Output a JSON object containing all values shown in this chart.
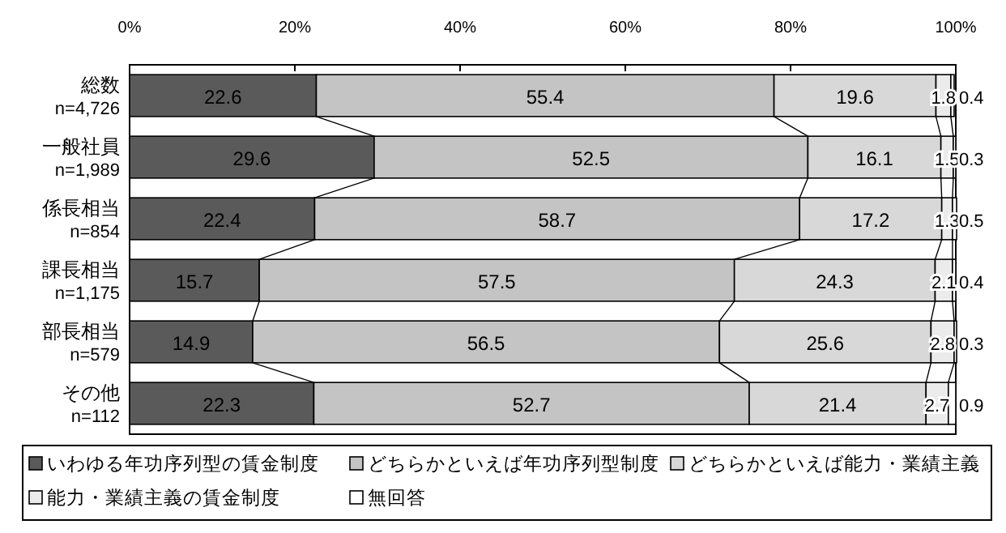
{
  "chart_data": {
    "type": "bar",
    "orientation": "horizontal",
    "stacked": true,
    "data_labels": true,
    "legend": "bottom",
    "grid": false,
    "categories": [
      "総数\nn=4,726",
      "一般社員\nn=1,989",
      "係長相当\nn=854",
      "課長相当\nn=1,175",
      "部長相当\nn=579",
      "その他\nn=112"
    ],
    "xlim": [
      0,
      100
    ],
    "xticks": [
      {
        "value": 0,
        "label": "0%"
      },
      {
        "value": 20,
        "label": "20%"
      },
      {
        "value": 40,
        "label": "40%"
      },
      {
        "value": 60,
        "label": "60%"
      },
      {
        "value": 80,
        "label": "80%"
      },
      {
        "value": 100,
        "label": "100%"
      }
    ],
    "series": [
      {
        "name": "いわゆる年功序列型の賃金制度",
        "color": "#5a5a5a",
        "values": [
          22.6,
          29.6,
          22.4,
          15.7,
          14.9,
          22.3
        ]
      },
      {
        "name": "どちらかといえば年功序列型制度",
        "color": "#c4c4c4",
        "values": [
          55.4,
          52.5,
          58.7,
          57.5,
          56.5,
          52.7
        ]
      },
      {
        "name": "どちらかといえば能力・業績主義",
        "color": "#d8d8d8",
        "values": [
          19.6,
          16.1,
          17.2,
          24.3,
          25.6,
          21.4
        ]
      },
      {
        "name": "能力・業績主義の賃金制度",
        "color": "#ebebeb",
        "values": [
          1.8,
          1.5,
          1.3,
          2.1,
          2.8,
          2.7
        ]
      },
      {
        "name": "無回答",
        "color": "#ffffff",
        "values": [
          0.4,
          0.3,
          0.5,
          0.4,
          0.3,
          0.9
        ]
      }
    ]
  }
}
